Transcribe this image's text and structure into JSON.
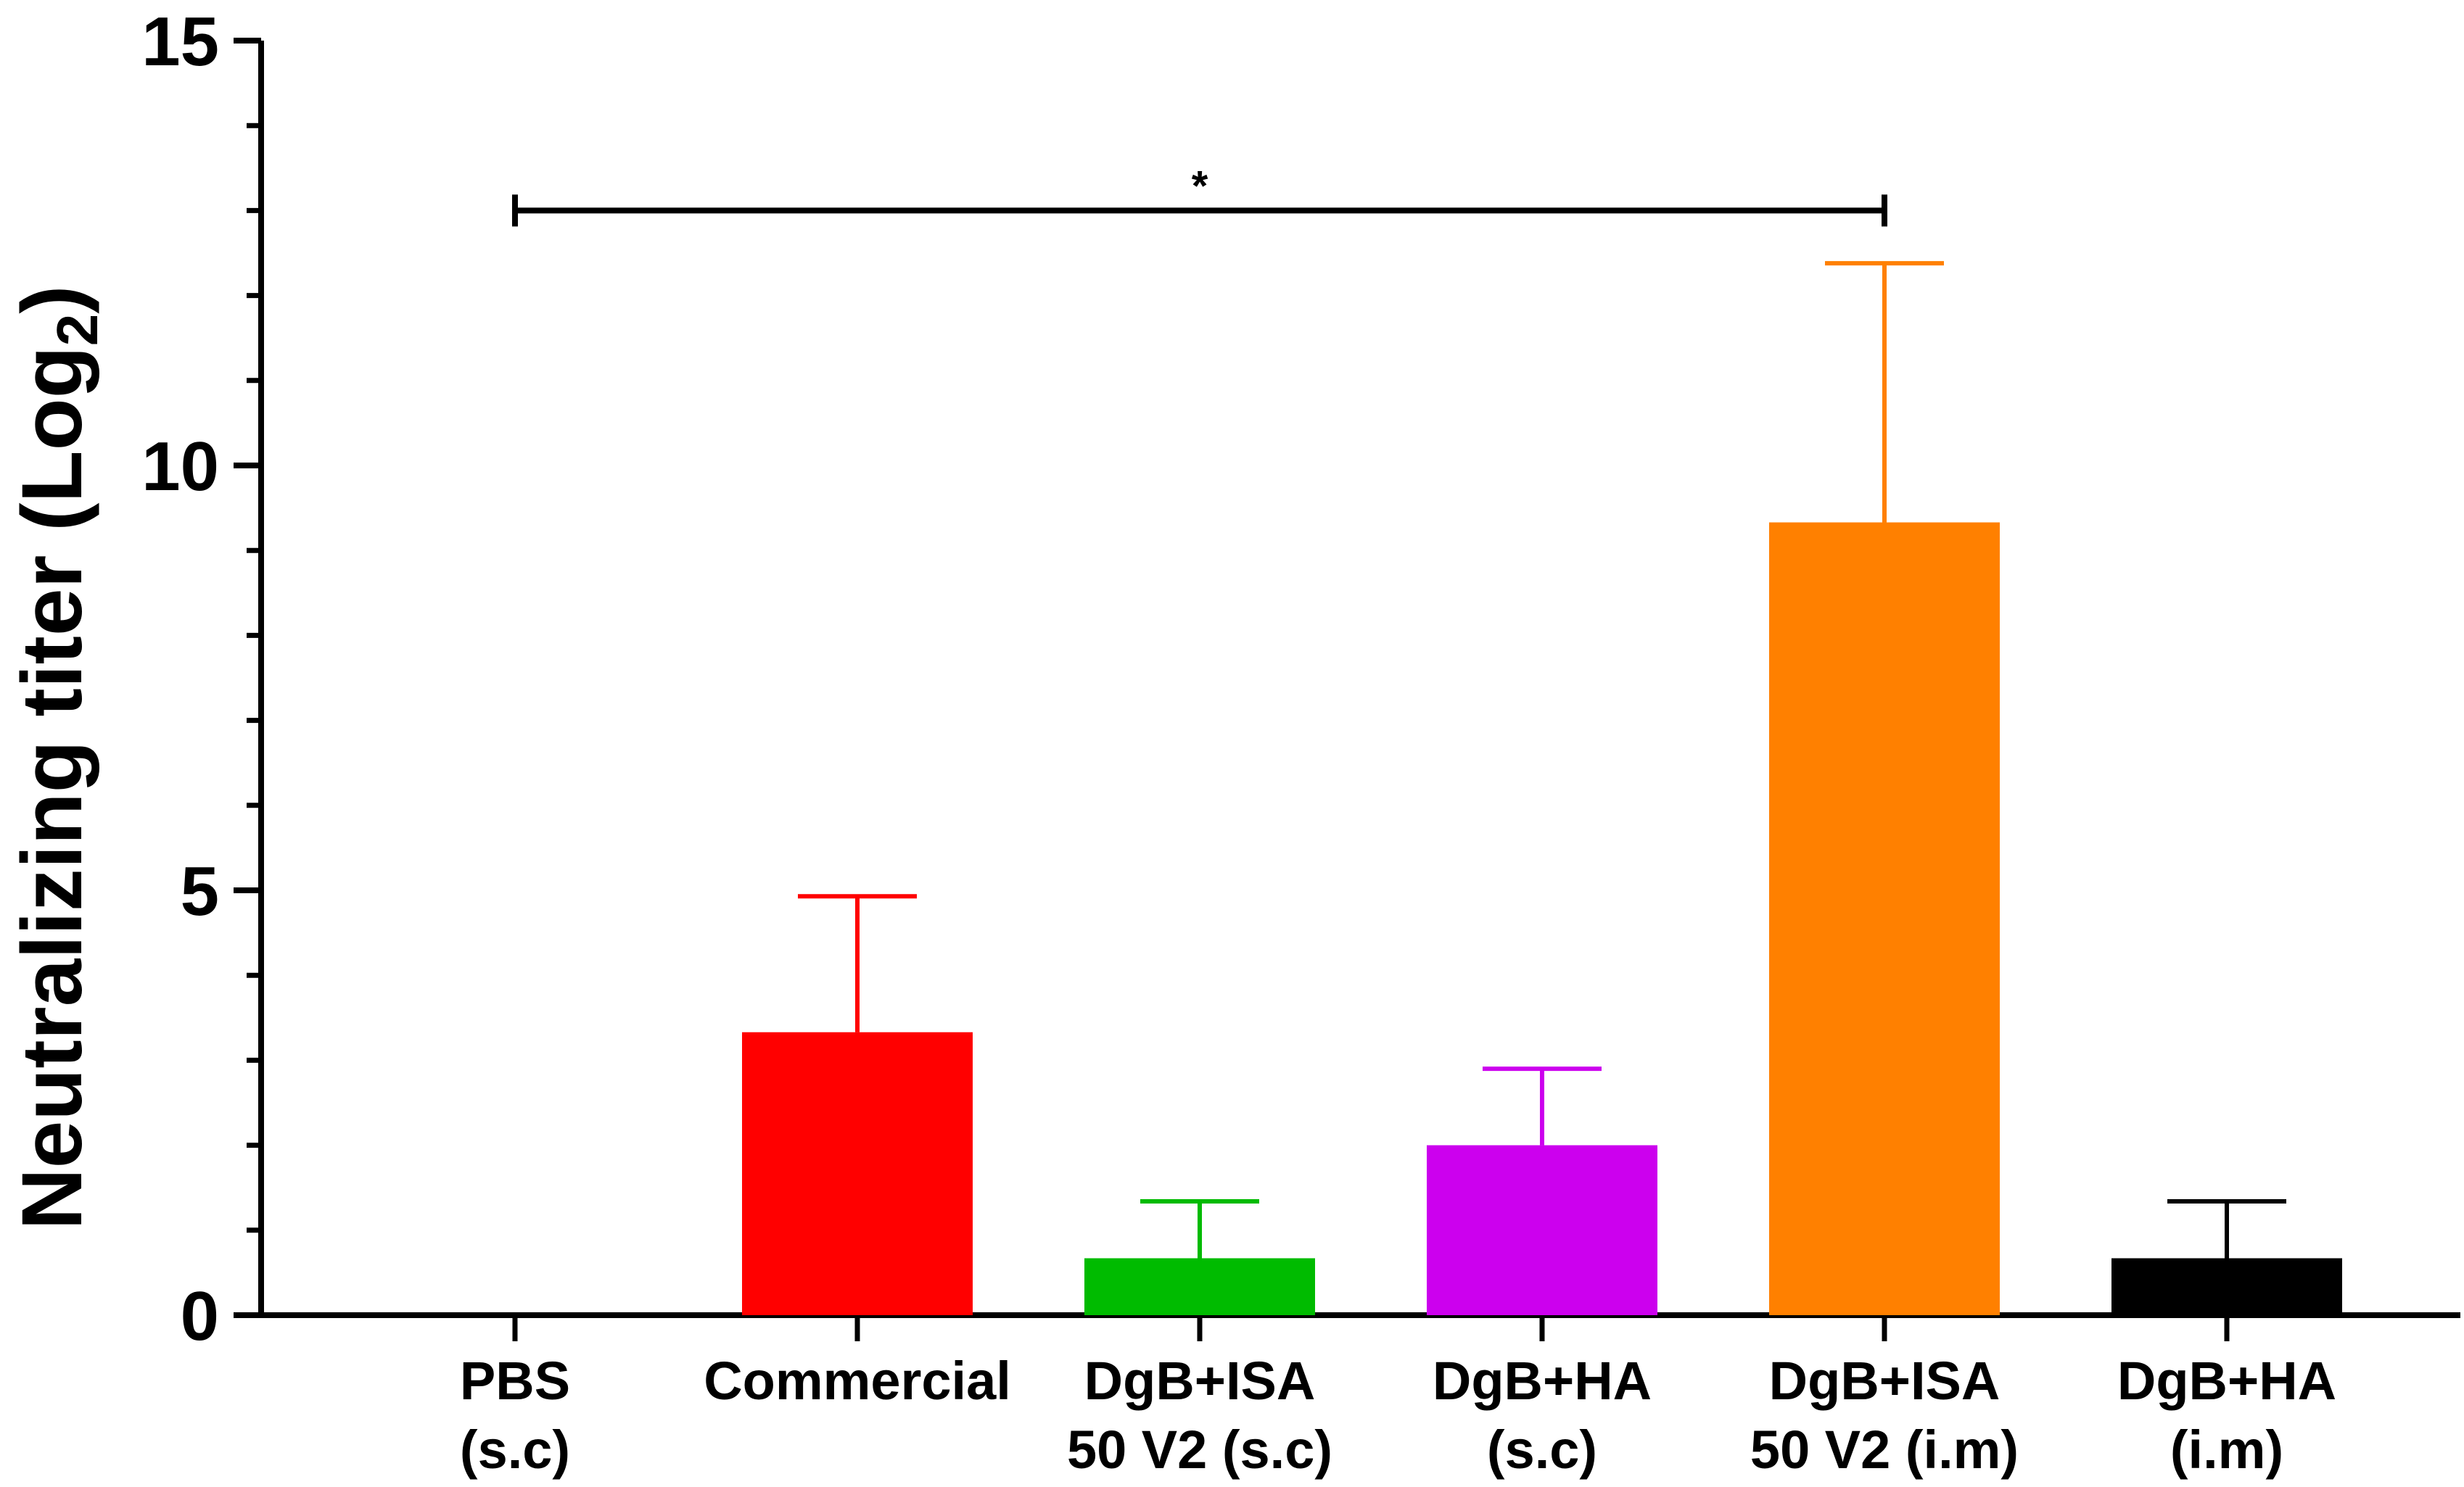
{
  "chart_data": {
    "type": "bar",
    "title": "",
    "xlabel": "",
    "ylabel": "Neutralizing titer (Log",
    "ylabel_subscript": "2",
    "ylabel_close": ")",
    "ylim": [
      0,
      15
    ],
    "major_ticks": [
      0,
      5,
      10,
      15
    ],
    "major_tick_labels": [
      "0",
      "5",
      "10",
      "15"
    ],
    "minor_ticks": [
      1,
      2,
      3,
      4,
      6,
      7,
      8,
      9,
      11,
      12,
      13,
      14
    ],
    "categories": [
      {
        "line1": "PBS",
        "line2": "(s.c)"
      },
      {
        "line1": "Commercial",
        "line2": ""
      },
      {
        "line1": "DgB+ISA",
        "line2": "50 V2 (s.c)"
      },
      {
        "line1": "DgB+HA",
        "line2": "(s.c)"
      },
      {
        "line1": "DgB+ISA",
        "line2": "50 V2 (i.m)"
      },
      {
        "line1": "DgB+HA",
        "line2": "(i.m)"
      }
    ],
    "values": [
      0,
      3.33,
      0.67,
      2.0,
      9.33,
      0.67
    ],
    "error_upper": [
      0,
      1.6,
      0.67,
      0.9,
      3.05,
      0.67
    ],
    "colors": [
      "#000000",
      "#ff0000",
      "#00bb00",
      "#cc00ee",
      "#ff8000",
      "#000000"
    ],
    "significance": {
      "from_index": 0,
      "to_index": 4,
      "y": 13.0,
      "label": "*"
    }
  }
}
